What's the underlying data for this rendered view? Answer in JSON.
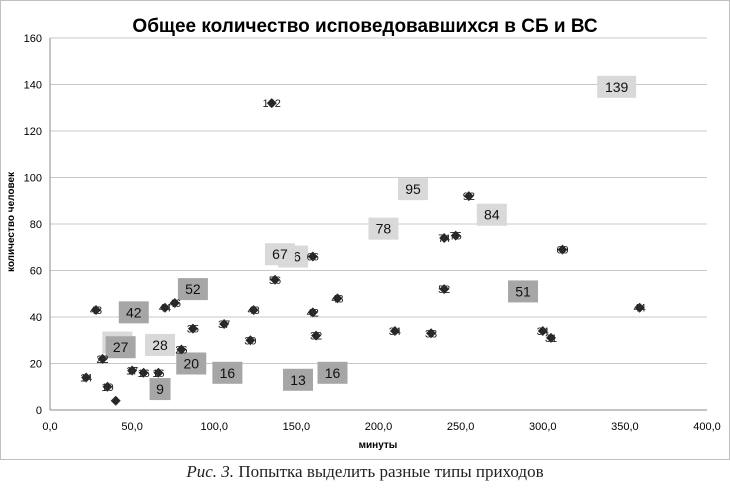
{
  "chart_data": {
    "type": "scatter",
    "title": "Общее количество исповедовавшихся в СБ и ВС",
    "xlabel": "минуты",
    "ylabel": "количество человек",
    "xlim": [
      0,
      400
    ],
    "ylim": [
      0,
      160
    ],
    "x_ticks": [
      "0,0",
      "50,0",
      "100,0",
      "150,0",
      "200,0",
      "250,0",
      "300,0",
      "350,0",
      "400,0"
    ],
    "y_ticks": [
      "0",
      "20",
      "40",
      "60",
      "80",
      "100",
      "120",
      "140",
      "160"
    ],
    "grid": "horizontal",
    "marker_color": "#2b2b2b",
    "point_label_color": "#222222",
    "points": [
      {
        "x": 135,
        "y": 132,
        "label": "132"
      },
      {
        "x": 28,
        "y": 43,
        "label": "43"
      },
      {
        "x": 22,
        "y": 14,
        "label": "14"
      },
      {
        "x": 32,
        "y": 22,
        "label": "22"
      },
      {
        "x": 35,
        "y": 10,
        "label": "10"
      },
      {
        "x": 40,
        "y": 4,
        "label": "4"
      },
      {
        "x": 50,
        "y": 17,
        "label": "17"
      },
      {
        "x": 57,
        "y": 16,
        "label": "16"
      },
      {
        "x": 66,
        "y": 16,
        "label": "16"
      },
      {
        "x": 70,
        "y": 44,
        "label": "44"
      },
      {
        "x": 76,
        "y": 46,
        "label": "46"
      },
      {
        "x": 80,
        "y": 26,
        "label": "26"
      },
      {
        "x": 87,
        "y": 35,
        "label": "35"
      },
      {
        "x": 106,
        "y": 37,
        "label": "37"
      },
      {
        "x": 124,
        "y": 43,
        "label": "43"
      },
      {
        "x": 122,
        "y": 30,
        "label": "30"
      },
      {
        "x": 137,
        "y": 56,
        "label": "56"
      },
      {
        "x": 160,
        "y": 66,
        "label": "66"
      },
      {
        "x": 160,
        "y": 42,
        "label": "42"
      },
      {
        "x": 162,
        "y": 32,
        "label": "32"
      },
      {
        "x": 175,
        "y": 48,
        "label": "48"
      },
      {
        "x": 210,
        "y": 34,
        "label": "34"
      },
      {
        "x": 232,
        "y": 33,
        "label": "33"
      },
      {
        "x": 240,
        "y": 52,
        "label": "52"
      },
      {
        "x": 240,
        "y": 74,
        "label": "74"
      },
      {
        "x": 247,
        "y": 75,
        "label": "75"
      },
      {
        "x": 255,
        "y": 92,
        "label": "92"
      },
      {
        "x": 300,
        "y": 34,
        "label": "34"
      },
      {
        "x": 305,
        "y": 31,
        "label": "31"
      },
      {
        "x": 312,
        "y": 69,
        "label": "69"
      },
      {
        "x": 359,
        "y": 44,
        "label": "44"
      }
    ],
    "boxed_labels": [
      {
        "x": 345,
        "y": 139,
        "label": "139",
        "shade": "light"
      },
      {
        "x": 221,
        "y": 95,
        "label": "95",
        "shade": "light"
      },
      {
        "x": 269,
        "y": 84,
        "label": "84",
        "shade": "light"
      },
      {
        "x": 203,
        "y": 78,
        "label": "78",
        "shade": "light"
      },
      {
        "x": 148,
        "y": 66,
        "label": "66",
        "shade": "light"
      },
      {
        "x": 140,
        "y": 67,
        "label": "67",
        "shade": "light"
      },
      {
        "x": 288,
        "y": 51,
        "label": "51",
        "shade": "dark"
      },
      {
        "x": 87,
        "y": 52,
        "label": "52",
        "shade": "dark"
      },
      {
        "x": 51,
        "y": 42,
        "label": "42",
        "shade": "dark"
      },
      {
        "x": 41,
        "y": 29,
        "label": "29",
        "shade": "light"
      },
      {
        "x": 43,
        "y": 27,
        "label": "27",
        "shade": "dark"
      },
      {
        "x": 67,
        "y": 28,
        "label": "28",
        "shade": "light"
      },
      {
        "x": 86,
        "y": 20,
        "label": "20",
        "shade": "dark"
      },
      {
        "x": 108,
        "y": 16,
        "label": "16",
        "shade": "dark"
      },
      {
        "x": 172,
        "y": 16,
        "label": "16",
        "shade": "dark"
      },
      {
        "x": 151,
        "y": 13,
        "label": "13",
        "shade": "dark"
      },
      {
        "x": 67,
        "y": 9,
        "label": "9",
        "shade": "dark"
      }
    ],
    "box_colors": {
      "light": "#d9d9d9",
      "dark": "#a6a6a6"
    }
  },
  "caption": {
    "figure_label": "Рис. 3.",
    "text": "Попытка выделить разные типы приходов"
  }
}
